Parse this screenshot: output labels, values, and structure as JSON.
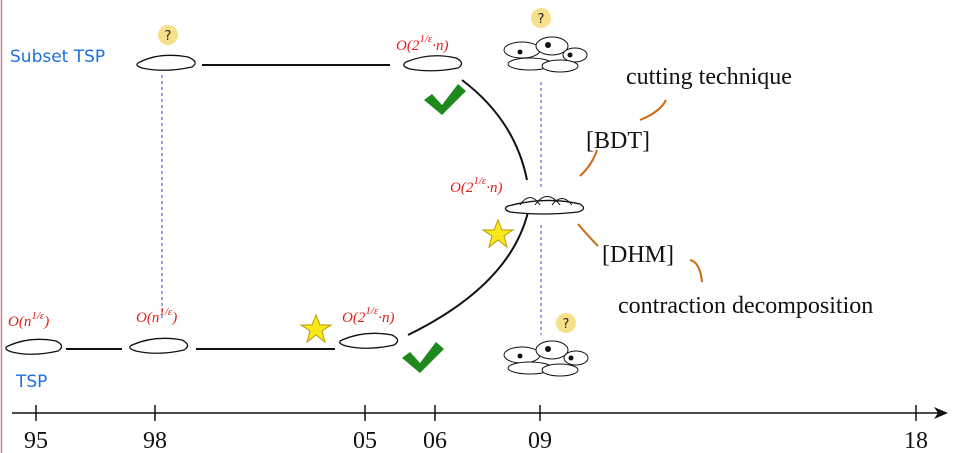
{
  "rows": {
    "subset_tsp": "Subset TSP",
    "tsp": "TSP"
  },
  "question_marks": [
    "?",
    "?",
    "?"
  ],
  "complexities": [
    {
      "base": "O(n",
      "exponent": "1/ε",
      "tail": ")"
    },
    {
      "base": "O(n",
      "exponent": "1/ε",
      "tail": ")"
    },
    {
      "base": "O(2",
      "exponent": "1/ε",
      "tail": "·n)"
    },
    {
      "base": "O(2",
      "exponent": "1/ε",
      "tail": "·n)"
    },
    {
      "base": "O(2",
      "exponent": "1/ε",
      "tail": "·n)"
    }
  ],
  "annotations": {
    "cutting_technique": "cutting technique",
    "bdt": "[BDT]",
    "dhm": "[DHM]",
    "contraction_decomposition": "contraction decomposition"
  },
  "timeline": {
    "ticks": [
      "95",
      "98",
      "05",
      "06",
      "09",
      "18"
    ]
  }
}
